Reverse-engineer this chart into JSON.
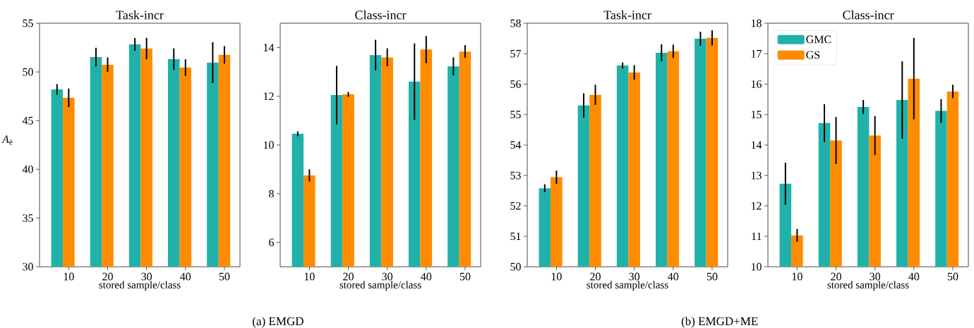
{
  "chart_data": [
    {
      "type": "bar",
      "title": "Task-incr",
      "xlabel": "stored sample/class",
      "ylabel": "*A*$_{ē}$",
      "categories": [
        "10",
        "20",
        "30",
        "40",
        "50"
      ],
      "ylim": [
        30,
        55
      ],
      "yticks": [
        30,
        35,
        40,
        45,
        50,
        55
      ],
      "annotations": [
        "(a)  EMGD"
      ],
      "series": [
        {
          "color": "#20b2aa",
          "values": [
            48.2,
            51.53,
            52.83,
            51.32,
            50.95
          ],
          "errors": [
            0.55,
            0.95,
            0.65,
            1.1,
            2.1
          ]
        },
        {
          "color": "#ff8c00",
          "values": [
            47.34,
            50.74,
            52.4,
            50.45,
            51.75
          ],
          "errors": [
            0.95,
            0.75,
            1.1,
            0.85,
            0.9
          ]
        }
      ]
    },
    {
      "type": "bar",
      "title": "Class-incr",
      "xlabel": "stored sample/class",
      "categories": [
        "10",
        "20",
        "30",
        "40",
        "50"
      ],
      "ylim": [
        5,
        15
      ],
      "yticks": [
        6,
        8,
        10,
        12,
        14
      ],
      "series": [
        {
          "color": "#20b2aa",
          "values": [
            10.46,
            12.05,
            13.69,
            12.6,
            13.23
          ],
          "errors": [
            0.1,
            1.2,
            0.63,
            1.57,
            0.37
          ]
        },
        {
          "color": "#ff8c00",
          "values": [
            8.75,
            12.08,
            13.6,
            13.92,
            13.84
          ],
          "errors": [
            0.25,
            0.1,
            0.37,
            0.56,
            0.26
          ]
        }
      ]
    },
    {
      "type": "bar",
      "title": "Task-incr",
      "xlabel": "stored sample/class",
      "categories": [
        "10",
        "20",
        "30",
        "40",
        "50"
      ],
      "ylim": [
        50,
        58
      ],
      "yticks": [
        50,
        51,
        52,
        53,
        54,
        55,
        56,
        57,
        58
      ],
      "annotations": [
        "(b)  EMGD+ME"
      ],
      "series": [
        {
          "color": "#20b2aa",
          "values": [
            52.58,
            55.3,
            56.61,
            57.03,
            57.49
          ],
          "errors": [
            0.13,
            0.4,
            0.1,
            0.28,
            0.23
          ]
        },
        {
          "color": "#ff8c00",
          "values": [
            52.94,
            55.65,
            56.38,
            57.08,
            57.52
          ],
          "errors": [
            0.22,
            0.33,
            0.24,
            0.22,
            0.25
          ]
        }
      ]
    },
    {
      "type": "bar",
      "title": "Class-incr",
      "xlabel": "stored sample/class",
      "categories": [
        "10",
        "20",
        "30",
        "40",
        "50"
      ],
      "ylim": [
        10,
        18
      ],
      "yticks": [
        10,
        11,
        12,
        13,
        14,
        15,
        16,
        17,
        18
      ],
      "legend": "top left",
      "series": [
        {
          "name": "GMC",
          "color": "#20b2aa",
          "values": [
            12.73,
            14.72,
            15.25,
            15.48,
            15.12
          ],
          "errors": [
            0.69,
            0.62,
            0.23,
            1.27,
            0.39
          ]
        },
        {
          "name": "GS",
          "color": "#ff8c00",
          "values": [
            11.03,
            14.15,
            14.31,
            16.18,
            15.76
          ],
          "errors": [
            0.21,
            0.77,
            0.64,
            1.34,
            0.22
          ]
        }
      ]
    }
  ]
}
